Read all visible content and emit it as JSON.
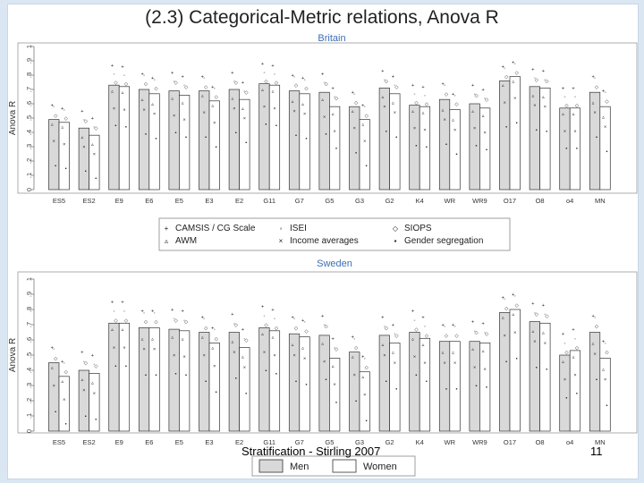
{
  "slide": {
    "title": "(2.3) Categorical-Metric relations, Anova R",
    "footer": "Stratification - Stirling 2007",
    "page_number": "11"
  },
  "colors": {
    "men": "#d9d9d9",
    "women": "#ffffff",
    "panel_title": "#3b6fb5",
    "axis": "#555555"
  },
  "chart_data": [
    {
      "type": "bar",
      "title": "Britain",
      "ylabel": "Anova R",
      "ylim": [
        0,
        1
      ],
      "yticks": [
        "0",
        ".1",
        ".2",
        ".3",
        ".4",
        ".5",
        ".6",
        ".7",
        ".8",
        ".9",
        "1"
      ],
      "categories": [
        "ES5",
        "ES2",
        "E9",
        "E6",
        "E5",
        "E3",
        "E2",
        "G11",
        "G7",
        "G5",
        "G3",
        "G2",
        "K4",
        "WR",
        "WR9",
        "O17",
        "O8",
        "o4",
        "MN"
      ],
      "series": [
        {
          "name": "Men",
          "values": [
            0.49,
            0.43,
            0.73,
            0.7,
            0.69,
            0.69,
            0.7,
            0.74,
            0.69,
            0.68,
            0.58,
            0.71,
            0.59,
            0.63,
            0.6,
            0.76,
            0.72,
            0.57,
            0.68
          ]
        },
        {
          "name": "Women",
          "values": [
            0.47,
            0.38,
            0.72,
            0.67,
            0.66,
            0.62,
            0.63,
            0.73,
            0.67,
            0.58,
            0.49,
            0.67,
            0.58,
            0.56,
            0.57,
            0.79,
            0.71,
            0.57,
            0.58
          ]
        }
      ]
    },
    {
      "type": "bar",
      "title": "Sweden",
      "ylabel": "Anova R",
      "ylim": [
        0,
        1
      ],
      "yticks": [
        "0",
        ".1",
        ".2",
        ".3",
        ".4",
        ".5",
        ".6",
        ".7",
        ".8",
        ".9",
        "1"
      ],
      "categories": [
        "ES5",
        "ES2",
        "E9",
        "E6",
        "E5",
        "E3",
        "E2",
        "G11",
        "G7",
        "G5",
        "G3",
        "G2",
        "K4",
        "WR",
        "WR9",
        "O17",
        "O8",
        "o4",
        "MN"
      ],
      "series": [
        {
          "name": "Men",
          "values": [
            0.45,
            0.4,
            0.71,
            0.68,
            0.67,
            0.65,
            0.65,
            0.68,
            0.64,
            0.63,
            0.52,
            0.63,
            0.65,
            0.59,
            0.59,
            0.78,
            0.72,
            0.5,
            0.65
          ]
        },
        {
          "name": "Women",
          "values": [
            0.36,
            0.38,
            0.71,
            0.68,
            0.66,
            0.58,
            0.55,
            0.66,
            0.62,
            0.48,
            0.39,
            0.58,
            0.61,
            0.59,
            0.58,
            0.8,
            0.71,
            0.53,
            0.48
          ]
        }
      ]
    }
  ],
  "legend_markers": [
    {
      "label": "CAMSIS / CG Scale",
      "symbol": "+"
    },
    {
      "label": "ISEI",
      "symbol": "◦"
    },
    {
      "label": "SIOPS",
      "symbol": "◇"
    },
    {
      "label": "AWM",
      "symbol": "▵"
    },
    {
      "label": "Income averages",
      "symbol": "×"
    },
    {
      "label": "Gender segregation",
      "symbol": "▪"
    }
  ],
  "legend_series": [
    {
      "label": "Men",
      "fill": "#d9d9d9"
    },
    {
      "label": "Women",
      "fill": "#ffffff"
    }
  ]
}
